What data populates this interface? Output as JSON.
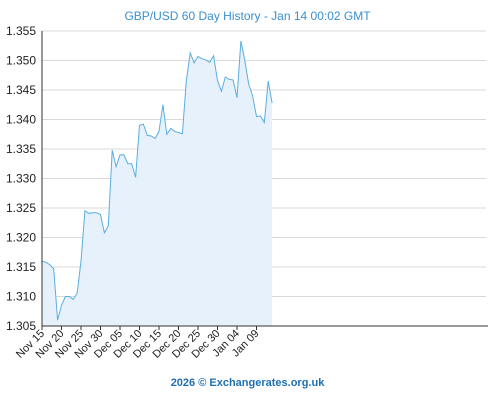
{
  "chart_data": {
    "type": "area",
    "title": "GBP/USD 60 Day History - Jan 14 00:02 GMT",
    "xlabel": "",
    "ylabel": "",
    "ylim": [
      1.305,
      1.355
    ],
    "yticks": [
      "1.305",
      "1.310",
      "1.315",
      "1.320",
      "1.325",
      "1.330",
      "1.335",
      "1.340",
      "1.345",
      "1.350",
      "1.355"
    ],
    "xticks": [
      "Nov 15",
      "Nov 20",
      "Nov 25",
      "Nov 30",
      "Dec 05",
      "Dec 10",
      "Dec 15",
      "Dec 20",
      "Dec 25",
      "Dec 30",
      "Jan 04",
      "Jan 09"
    ],
    "grid": true,
    "series": [
      {
        "values": [
          1.316,
          1.3158,
          1.3154,
          1.3147,
          1.306,
          1.3085,
          1.31,
          1.31,
          1.3095,
          1.3105,
          1.316,
          1.3245,
          1.3241,
          1.3242,
          1.3242,
          1.3239,
          1.3208,
          1.322,
          1.3348,
          1.332,
          1.334,
          1.334,
          1.3325,
          1.3325,
          1.3302,
          1.339,
          1.3392,
          1.3373,
          1.3372,
          1.3368,
          1.338,
          1.3425,
          1.3375,
          1.3385,
          1.338,
          1.3378,
          1.3376,
          1.3465,
          1.3513,
          1.3496,
          1.3507,
          1.3503,
          1.3501,
          1.3497,
          1.3508,
          1.3466,
          1.3448,
          1.3472,
          1.3468,
          1.3467,
          1.3437,
          1.3533,
          1.35,
          1.346,
          1.344,
          1.3405,
          1.3406,
          1.3395,
          1.3465,
          1.3428
        ]
      }
    ]
  },
  "footer": "2026 © Exchangerates.org.uk",
  "colors": {
    "line": "#5aaee0",
    "fill": "#e6f1fb",
    "grid": "#d9d9d9",
    "axis": "#333333",
    "title": "#3a8fd0"
  }
}
